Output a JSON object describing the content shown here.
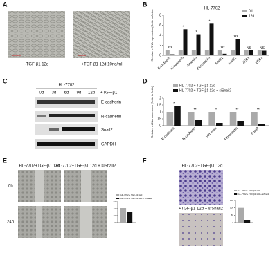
{
  "panel_a": {
    "label": "A",
    "captions": [
      "-TGF-β1 12d",
      "+TGF-β1 12d 10ng/ml"
    ]
  },
  "panel_c": {
    "label": "C",
    "title": "HL-7702",
    "lanes": [
      "0d",
      "3d",
      "6d",
      "9d",
      "12d"
    ],
    "treatment": "+TGF-β1",
    "proteins": [
      "E-cadherin",
      "N-cadherin",
      "Snail2",
      "GAPDH"
    ]
  },
  "panel_e": {
    "label": "E",
    "titles": [
      "HL-7702+TGF-β1 12d",
      "HL-7702+TGF-β1 12d + siSnail2"
    ],
    "rows": [
      "0h",
      "24h"
    ]
  },
  "panel_f": {
    "label": "F",
    "titles": [
      "HL-7702+TGF-β1 12d",
      "+TGF-β1 12d + siSnail2"
    ]
  },
  "chart_data": [
    {
      "type": "bar",
      "panel_label": "B",
      "title": "HL-7702",
      "ylabel": "Relative mRNA expression (Ratio to Actin)",
      "categories": [
        "E-cadherin",
        "N-cadherin",
        "Vimentin",
        "Fibronectin",
        "Snail1",
        "Snail2",
        "ZEB1",
        "ZEB2"
      ],
      "series": [
        {
          "name": "0d",
          "color": "#aaaaaa",
          "values": [
            1,
            1,
            1,
            1,
            1,
            1,
            1,
            1
          ]
        },
        {
          "name": "12d",
          "color": "#111111",
          "values": [
            0.2,
            5.2,
            4.2,
            6.3,
            0.3,
            3.2,
            1.0,
            0.9
          ]
        }
      ],
      "annotations": [
        "***",
        "*",
        "*",
        "*",
        "***",
        "***",
        "NS",
        "NS"
      ],
      "ylim": [
        0,
        8
      ],
      "yticks": [
        0,
        2,
        4,
        6,
        8
      ]
    },
    {
      "type": "bar",
      "panel_label": "D",
      "ylabel": "Relative mRNA expression (Ratio to Actin)",
      "categories": [
        "E-cadherin",
        "N-cadherin",
        "Vimentin",
        "Fibronectin",
        "Snail2"
      ],
      "series": [
        {
          "name": "HL-7702 + TGF-β1 12d",
          "color": "#aaaaaa",
          "values": [
            1,
            1,
            1,
            1,
            1
          ]
        },
        {
          "name": "HL-7702 + TGF-β1 12d + siSnail2",
          "color": "#111111",
          "values": [
            1.45,
            0.45,
            0.2,
            0.35,
            0.15
          ]
        }
      ],
      "annotations": [
        "*",
        "**",
        "**",
        "**",
        "**"
      ],
      "ylim": [
        0,
        2
      ],
      "yticks": [
        0,
        0.5,
        1,
        1.5,
        2
      ]
    },
    {
      "type": "bar",
      "categories": [
        null
      ],
      "series": [
        {
          "name": "HL-7702 + TGF-β1 12d",
          "color": "#aaaaaa",
          "values": [
            42
          ]
        },
        {
          "name": "HL-7702 + TGF-β1 12d + siSnail2",
          "color": "#111111",
          "values": [
            30
          ]
        }
      ],
      "ylim": [
        0,
        60
      ],
      "yticks": [
        0,
        20,
        40,
        60
      ]
    },
    {
      "type": "bar",
      "categories": [
        null
      ],
      "series": [
        {
          "name": "HL-7702 + TGF-β1 12d",
          "color": "#aaaaaa",
          "values": [
            100
          ]
        },
        {
          "name": "HL-7702 + TGF-β1 12d + siSnail2",
          "color": "#111111",
          "values": [
            15
          ]
        }
      ],
      "ylim": [
        0,
        150
      ],
      "yticks": [
        0,
        50,
        100,
        150
      ]
    }
  ]
}
